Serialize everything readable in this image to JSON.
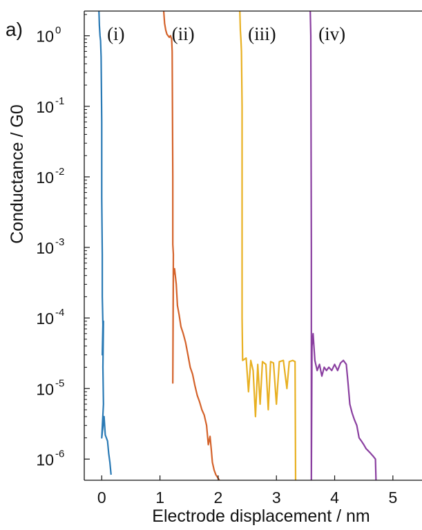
{
  "panel_label": "a)",
  "chart_data": {
    "type": "line",
    "title": "",
    "xlabel": "Electrode displacement / nm",
    "ylabel": "Conductance / G0",
    "xlim": [
      -0.3,
      5.5
    ],
    "ylim_log10": [
      -6.3,
      0.35
    ],
    "y_scale": "log",
    "x_ticks": [
      0,
      1,
      2,
      3,
      4,
      5
    ],
    "x_tick_labels": [
      "0",
      "1",
      "2",
      "3",
      "4",
      "5"
    ],
    "y_ticks": [
      {
        "value": 1,
        "base": "10",
        "exp": "0"
      },
      {
        "value": 0.1,
        "base": "10",
        "exp": "-1"
      },
      {
        "value": 0.01,
        "base": "10",
        "exp": "-2"
      },
      {
        "value": 0.001,
        "base": "10",
        "exp": "-3"
      },
      {
        "value": 0.0001,
        "base": "10",
        "exp": "-4"
      },
      {
        "value": 1e-05,
        "base": "10",
        "exp": "-5"
      },
      {
        "value": 1e-06,
        "base": "10",
        "exp": "-6"
      }
    ],
    "grid": false,
    "series": [
      {
        "name": "(i)",
        "color": "#2a7ab5",
        "points": [
          [
            -0.05,
            2.5
          ],
          [
            -0.04,
            1.4
          ],
          [
            -0.03,
            1.0
          ],
          [
            -0.02,
            0.85
          ],
          [
            -0.01,
            0.5
          ],
          [
            0.0,
            0.06
          ],
          [
            0.0,
            0.005
          ],
          [
            0.01,
            0.0008
          ],
          [
            0.01,
            0.0002
          ],
          [
            0.02,
            8e-05
          ],
          [
            0.01,
            3e-05
          ],
          [
            0.03,
            9e-05
          ],
          [
            0.02,
            2e-05
          ],
          [
            0.03,
            6e-06
          ],
          [
            0.0,
            2e-06
          ],
          [
            0.04,
            4e-06
          ],
          [
            0.05,
            3e-06
          ],
          [
            0.06,
            2.2e-06
          ],
          [
            0.1,
            1.8e-06
          ],
          [
            0.12,
            1.2e-06
          ],
          [
            0.14,
            9e-07
          ],
          [
            0.16,
            6e-07
          ]
        ]
      },
      {
        "name": "(ii)",
        "color": "#d4622a",
        "points": [
          [
            1.06,
            2.5
          ],
          [
            1.08,
            1.5
          ],
          [
            1.1,
            1.2
          ],
          [
            1.12,
            1.05
          ],
          [
            1.16,
            0.95
          ],
          [
            1.18,
            1.0
          ],
          [
            1.2,
            0.9
          ],
          [
            1.21,
            0.6
          ],
          [
            1.22,
            0.01
          ],
          [
            1.22,
            0.0011
          ],
          [
            1.23,
            0.0008
          ],
          [
            1.22,
            1.2e-05
          ],
          [
            1.23,
            0.0004
          ],
          [
            1.25,
            0.0005
          ],
          [
            1.28,
            0.0003
          ],
          [
            1.3,
            0.00015
          ],
          [
            1.33,
            0.00011
          ],
          [
            1.36,
            7.5e-05
          ],
          [
            1.4,
            6e-05
          ],
          [
            1.44,
            4.5e-05
          ],
          [
            1.48,
            3e-05
          ],
          [
            1.52,
            2e-05
          ],
          [
            1.56,
            1.6e-05
          ],
          [
            1.6,
            1.1e-05
          ],
          [
            1.64,
            8e-06
          ],
          [
            1.68,
            6.5e-06
          ],
          [
            1.72,
            5e-06
          ],
          [
            1.76,
            4.2e-06
          ],
          [
            1.8,
            3e-06
          ],
          [
            1.83,
            1.6e-06
          ],
          [
            1.86,
            2.1e-06
          ],
          [
            1.88,
            1.4e-06
          ],
          [
            1.9,
            9e-07
          ],
          [
            1.93,
            7e-07
          ],
          [
            1.96,
            6e-07
          ],
          [
            1.99,
            5.5e-07
          ],
          [
            2.02,
            5e-07
          ]
        ]
      },
      {
        "name": "(iii)",
        "color": "#e8b021",
        "points": [
          [
            2.37,
            2.5
          ],
          [
            2.38,
            1.2
          ],
          [
            2.39,
            0.9
          ],
          [
            2.4,
            0.6
          ],
          [
            2.41,
            0.1
          ],
          [
            2.41,
            0.0001
          ],
          [
            2.42,
            2.5e-05
          ],
          [
            2.48,
            2.7e-05
          ],
          [
            2.52,
            9e-06
          ],
          [
            2.56,
            2.5e-05
          ],
          [
            2.6,
            1.8e-05
          ],
          [
            2.64,
            4e-06
          ],
          [
            2.68,
            2.2e-05
          ],
          [
            2.72,
            6e-06
          ],
          [
            2.76,
            2.4e-05
          ],
          [
            2.82,
            2.2e-05
          ],
          [
            2.86,
            5e-06
          ],
          [
            2.9,
            2.4e-05
          ],
          [
            2.95,
            2.3e-05
          ],
          [
            3.0,
            6e-06
          ],
          [
            3.05,
            2.4e-05
          ],
          [
            3.12,
            2.5e-05
          ],
          [
            3.18,
            1e-05
          ],
          [
            3.22,
            2.4e-05
          ],
          [
            3.28,
            2.5e-05
          ],
          [
            3.32,
            2.4e-05
          ],
          [
            3.33,
            5e-07
          ]
        ]
      },
      {
        "name": "(iv)",
        "color": "#8a3fa0",
        "points": [
          [
            3.58,
            2.5
          ],
          [
            3.59,
            1.0
          ],
          [
            3.6,
            0.001
          ],
          [
            3.6,
            5e-07
          ],
          [
            3.61,
            4e-05
          ],
          [
            3.63,
            6e-05
          ],
          [
            3.66,
            2.5e-05
          ],
          [
            3.7,
            1.8e-05
          ],
          [
            3.74,
            2.2e-05
          ],
          [
            3.78,
            1.5e-05
          ],
          [
            3.82,
            2e-05
          ],
          [
            3.86,
            1.8e-05
          ],
          [
            3.9,
            2e-05
          ],
          [
            3.95,
            1.8e-05
          ],
          [
            4.0,
            2.2e-05
          ],
          [
            4.05,
            1.8e-05
          ],
          [
            4.1,
            2.3e-05
          ],
          [
            4.15,
            2.5e-05
          ],
          [
            4.2,
            2.2e-05
          ],
          [
            4.23,
            1.2e-05
          ],
          [
            4.26,
            6e-06
          ],
          [
            4.3,
            4.5e-06
          ],
          [
            4.34,
            3.6e-06
          ],
          [
            4.38,
            3e-06
          ],
          [
            4.42,
            2e-06
          ],
          [
            4.46,
            1.8e-06
          ],
          [
            4.5,
            1.6e-06
          ],
          [
            4.54,
            1.4e-06
          ],
          [
            4.58,
            1.3e-06
          ],
          [
            4.62,
            1.2e-06
          ],
          [
            4.66,
            1.1e-06
          ],
          [
            4.7,
            1e-06
          ],
          [
            4.71,
            5e-07
          ]
        ]
      }
    ]
  }
}
